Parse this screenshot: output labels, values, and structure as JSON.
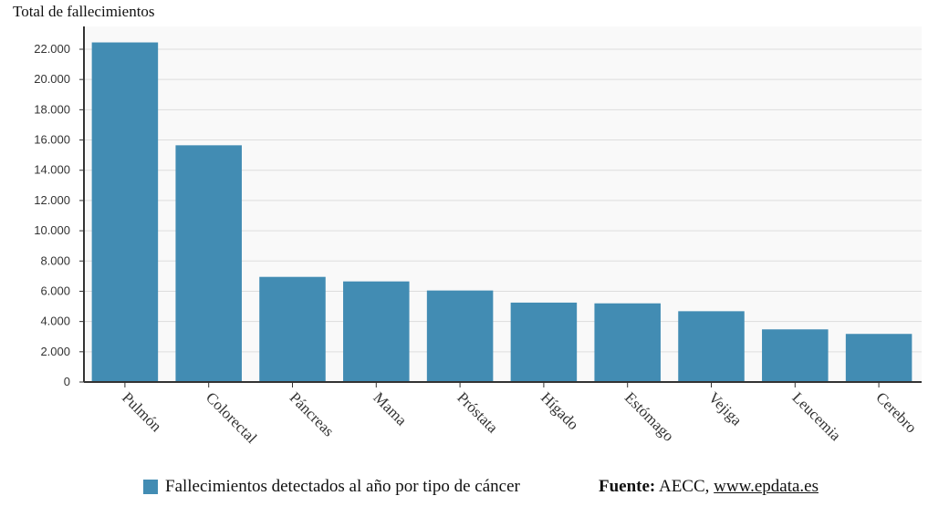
{
  "chart_data": {
    "type": "bar",
    "ylabel": "Total de fallecimientos",
    "xlabel": "",
    "categories": [
      "Pulmón",
      "Colorectal",
      "Páncreas",
      "Mama",
      "Próstata",
      "Hígado",
      "Estómago",
      "Vejiga",
      "Leucemia",
      "Cerebro"
    ],
    "series": [
      {
        "name": "Fallecimientos detectados al año por tipo de cáncer",
        "values": [
          22450,
          15650,
          6950,
          6650,
          6050,
          5250,
          5200,
          4680,
          3480,
          3180
        ]
      }
    ],
    "ylim": [
      0,
      22000
    ],
    "yticks": [
      0,
      2000,
      4000,
      6000,
      8000,
      10000,
      12000,
      14000,
      16000,
      18000,
      20000,
      22000
    ],
    "ytick_labels": [
      "0",
      "2.000",
      "4.000",
      "6.000",
      "8.000",
      "10.000",
      "12.000",
      "14.000",
      "16.000",
      "18.000",
      "20.000",
      "22.000"
    ],
    "grid": true,
    "legend_position": "bottom",
    "colors": {
      "bar": "#428cb3",
      "grid": "#dddddd",
      "plot_bg": "#f9f9f9",
      "axis": "#333333"
    }
  },
  "source": {
    "label": "Fuente:",
    "text": "AECC, ",
    "link": "www.epdata.es"
  }
}
